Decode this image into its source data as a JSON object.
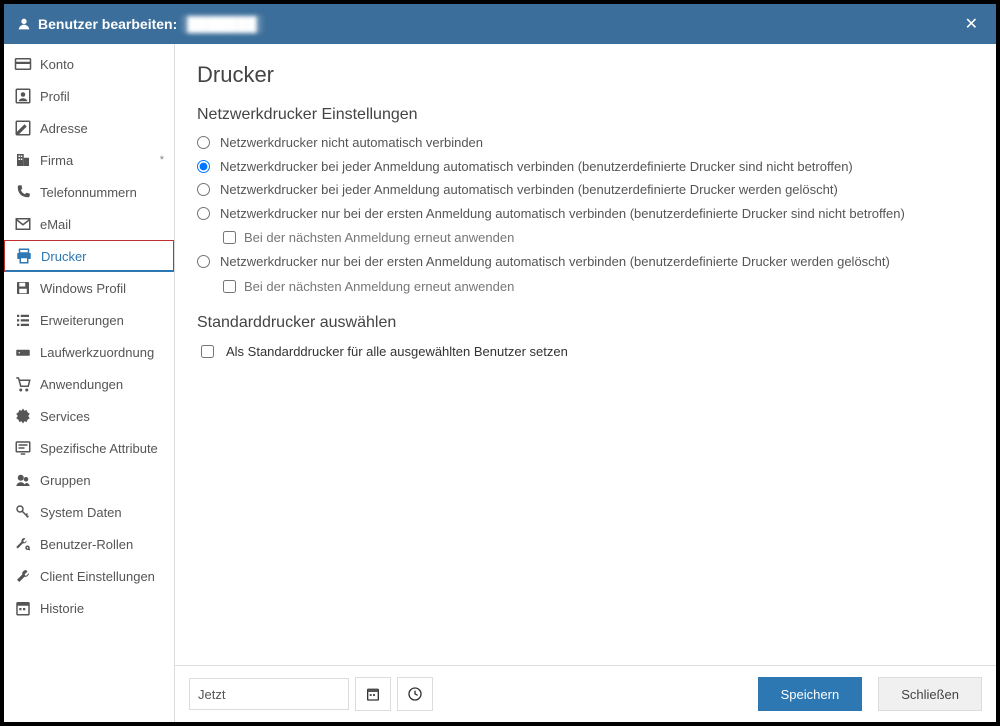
{
  "colors": {
    "header_bg": "#3b6e9a",
    "accent": "#2d77b3",
    "highlight_border": "#c03030",
    "save_bg": "#2d77b3",
    "close_bg": "#f0f0f0",
    "border": "#dcdcdc"
  },
  "header": {
    "title_prefix": "Benutzer bearbeiten:",
    "user_name": "███████"
  },
  "sidebar": {
    "items": [
      {
        "id": "konto",
        "label": "Konto",
        "icon": "card"
      },
      {
        "id": "profil",
        "label": "Profil",
        "icon": "profile"
      },
      {
        "id": "adresse",
        "label": "Adresse",
        "icon": "edit"
      },
      {
        "id": "firma",
        "label": "Firma",
        "icon": "building",
        "marker": "*"
      },
      {
        "id": "telefon",
        "label": "Telefonnummern",
        "icon": "phone"
      },
      {
        "id": "email",
        "label": "eMail",
        "icon": "mail"
      },
      {
        "id": "drucker",
        "label": "Drucker",
        "icon": "printer",
        "active": true,
        "highlighted": true
      },
      {
        "id": "winprofil",
        "label": "Windows Profil",
        "icon": "save"
      },
      {
        "id": "erweiterungen",
        "label": "Erweiterungen",
        "icon": "list"
      },
      {
        "id": "laufwerk",
        "label": "Laufwerkzuordnung",
        "icon": "drive"
      },
      {
        "id": "anwendungen",
        "label": "Anwendungen",
        "icon": "cart"
      },
      {
        "id": "services",
        "label": "Services",
        "icon": "gear"
      },
      {
        "id": "attribute",
        "label": "Spezifische Attribute",
        "icon": "screen"
      },
      {
        "id": "gruppen",
        "label": "Gruppen",
        "icon": "group"
      },
      {
        "id": "systemdaten",
        "label": "System Daten",
        "icon": "key"
      },
      {
        "id": "rollen",
        "label": "Benutzer-Rollen",
        "icon": "wrenchkey"
      },
      {
        "id": "client",
        "label": "Client Einstellungen",
        "icon": "wrench"
      },
      {
        "id": "historie",
        "label": "Historie",
        "icon": "calendar"
      }
    ]
  },
  "main": {
    "title": "Drucker",
    "section1": {
      "title": "Netzwerkdrucker Einstellungen",
      "options": [
        {
          "label": "Netzwerkdrucker nicht automatisch verbinden",
          "selected": false
        },
        {
          "label": "Netzwerkdrucker bei jeder Anmeldung automatisch verbinden (benutzerdefinierte Drucker sind nicht betroffen)",
          "selected": true
        },
        {
          "label": "Netzwerkdrucker bei jeder Anmeldung automatisch verbinden (benutzerdefinierte Drucker werden gelöscht)",
          "selected": false
        },
        {
          "label": "Netzwerkdrucker nur bei der ersten Anmeldung automatisch verbinden (benutzerdefinierte Drucker sind nicht betroffen)",
          "selected": false,
          "sub_checkbox": {
            "label": "Bei der nächsten Anmeldung erneut anwenden",
            "checked": false
          }
        },
        {
          "label": "Netzwerkdrucker nur bei der ersten Anmeldung automatisch verbinden (benutzerdefinierte Drucker werden gelöscht)",
          "selected": false,
          "sub_checkbox": {
            "label": "Bei der nächsten Anmeldung erneut anwenden",
            "checked": false
          }
        }
      ]
    },
    "section2": {
      "title": "Standarddrucker auswählen",
      "checkbox": {
        "label": "Als Standarddrucker für alle ausgewählten Benutzer setzen",
        "checked": false
      }
    }
  },
  "footer": {
    "time_value": "Jetzt",
    "save_label": "Speichern",
    "close_label": "Schließen"
  }
}
